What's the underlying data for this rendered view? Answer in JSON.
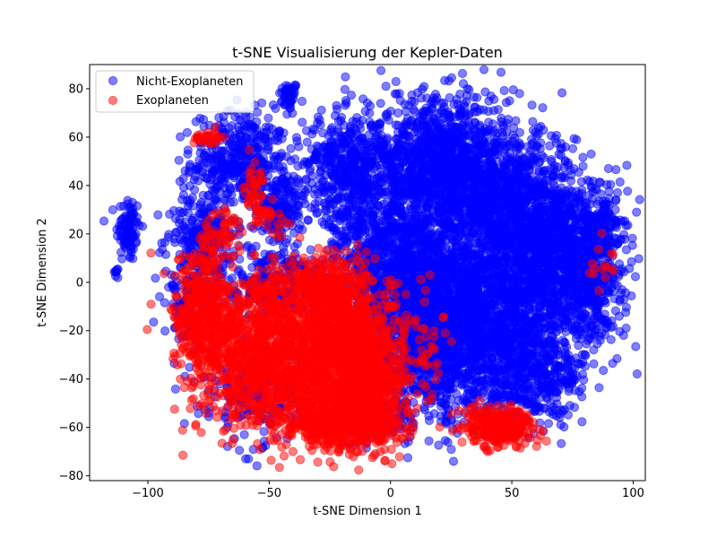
{
  "chart_data": {
    "type": "scatter",
    "title": "t-SNE Visualisierung der Kepler-Daten",
    "xlabel": "t-SNE Dimension 1",
    "ylabel": "t-SNE Dimension 2",
    "xlim": [
      -124,
      105
    ],
    "ylim": [
      -82,
      90
    ],
    "xticks": [
      -100,
      -50,
      0,
      50,
      100
    ],
    "xtick_labels": [
      "−100",
      "−50",
      "0",
      "50",
      "100"
    ],
    "yticks": [
      -80,
      -60,
      -40,
      -20,
      0,
      20,
      40,
      60,
      80
    ],
    "ytick_labels": [
      "−80",
      "−60",
      "−40",
      "−20",
      "0",
      "20",
      "40",
      "60",
      "80"
    ],
    "grid": false,
    "legend_position": "top-left",
    "marker_alpha": 0.5,
    "series": [
      {
        "name": "Nicht-Exoplaneten",
        "color": "#0000ff",
        "clusters": [
          {
            "x": -42,
            "y": 77,
            "sx": 2,
            "sy": 3,
            "n": 45
          },
          {
            "x": -108,
            "y": 22,
            "sx": 2.5,
            "sy": 7,
            "n": 90
          },
          {
            "x": -113,
            "y": 4,
            "sx": 0.8,
            "sy": 1.2,
            "n": 8
          },
          {
            "x": -62,
            "y": 50,
            "sx": 10,
            "sy": 10,
            "n": 420
          },
          {
            "x": -45,
            "y": 30,
            "sx": 5,
            "sy": 8,
            "n": 160
          },
          {
            "x": -78,
            "y": 20,
            "sx": 7,
            "sy": 8,
            "n": 200
          },
          {
            "x": -50,
            "y": 0,
            "sx": 15,
            "sy": 7,
            "n": 260
          },
          {
            "x": -20,
            "y": 50,
            "sx": 8,
            "sy": 10,
            "n": 300
          },
          {
            "x": -5,
            "y": 30,
            "sx": 12,
            "sy": 20,
            "n": 600
          },
          {
            "x": 20,
            "y": 50,
            "sx": 14,
            "sy": 13,
            "n": 900
          },
          {
            "x": 45,
            "y": 35,
            "sx": 15,
            "sy": 15,
            "n": 900
          },
          {
            "x": 10,
            "y": 0,
            "sx": 14,
            "sy": 15,
            "n": 1100
          },
          {
            "x": 60,
            "y": 10,
            "sx": 16,
            "sy": 18,
            "n": 1300
          },
          {
            "x": 80,
            "y": 5,
            "sx": 8,
            "sy": 15,
            "n": 500
          },
          {
            "x": 40,
            "y": -20,
            "sx": 16,
            "sy": 15,
            "n": 1000
          },
          {
            "x": 15,
            "y": -30,
            "sx": 14,
            "sy": 15,
            "n": 700
          },
          {
            "x": 60,
            "y": -40,
            "sx": 10,
            "sy": 8,
            "n": 300
          },
          {
            "x": -10,
            "y": -55,
            "sx": 8,
            "sy": 6,
            "n": 200
          },
          {
            "x": -55,
            "y": -45,
            "sx": 12,
            "sy": 10,
            "n": 220
          },
          {
            "x": -82,
            "y": -10,
            "sx": 5,
            "sy": 10,
            "n": 100
          },
          {
            "x": 88,
            "y": 25,
            "sx": 4,
            "sy": 5,
            "n": 60
          }
        ]
      },
      {
        "name": "Exoplaneten",
        "color": "#ff0000",
        "clusters": [
          {
            "x": -25,
            "y": -5,
            "sx": 8,
            "sy": 8,
            "n": 450
          },
          {
            "x": -20,
            "y": -30,
            "sx": 15,
            "sy": 14,
            "n": 1300
          },
          {
            "x": -55,
            "y": -30,
            "sx": 12,
            "sy": 15,
            "n": 900
          },
          {
            "x": -78,
            "y": -15,
            "sx": 6,
            "sy": 13,
            "n": 400
          },
          {
            "x": -20,
            "y": -58,
            "sx": 12,
            "sy": 6,
            "n": 600
          },
          {
            "x": -10,
            "y": -45,
            "sx": 8,
            "sy": 10,
            "n": 350
          },
          {
            "x": 45,
            "y": -60,
            "sx": 7,
            "sy": 4,
            "n": 320
          },
          {
            "x": -75,
            "y": 60,
            "sx": 3,
            "sy": 1.5,
            "n": 30
          },
          {
            "x": -56,
            "y": 40,
            "sx": 2.5,
            "sy": 6,
            "n": 40
          },
          {
            "x": -68,
            "y": 22,
            "sx": 3,
            "sy": 6,
            "n": 40
          },
          {
            "x": -75,
            "y": 12,
            "sx": 3,
            "sy": 6,
            "n": 40
          },
          {
            "x": -50,
            "y": 27,
            "sx": 5,
            "sy": 3,
            "n": 30
          },
          {
            "x": -50,
            "y": -3,
            "sx": 5,
            "sy": 4,
            "n": 60
          },
          {
            "x": 88,
            "y": 8,
            "sx": 3,
            "sy": 4,
            "n": 15
          }
        ]
      }
    ]
  }
}
